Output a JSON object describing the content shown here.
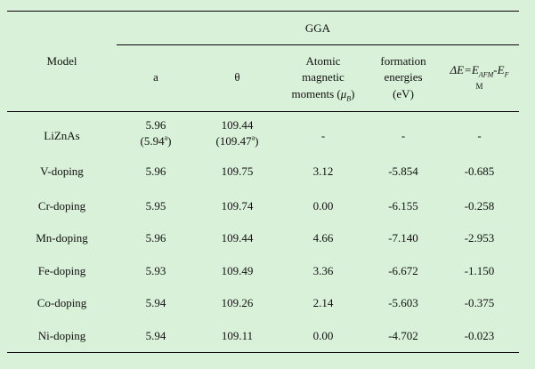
{
  "table": {
    "group_header": "GGA",
    "model_header": "Model",
    "columns": {
      "a": "a",
      "theta": "θ",
      "moments_line1": "Atomic",
      "moments_line2": "magnetic",
      "moments_line3_prefix": "moments (",
      "moments_mu": "μ",
      "moments_mu_sub": "B",
      "moments_suffix": ")",
      "formation_line1": "formation",
      "formation_line2": "energies",
      "formation_line3": "(eV)",
      "delta_prefix": "ΔE=E",
      "delta_sub1": "AFM",
      "delta_mid": "-E",
      "delta_sub2": "F",
      "delta_line2": "M"
    },
    "rows": [
      {
        "model": "LiZnAs",
        "a": "5.96",
        "a_ref": "(5.94",
        "a_ref_sup": "a",
        "a_ref_close": ")",
        "theta": "109.44",
        "theta_ref": "(109.47",
        "theta_ref_sup": "a",
        "theta_ref_close": ")",
        "moment": "-",
        "formation": "-",
        "delta": "-"
      },
      {
        "model": "V-doping",
        "a": "5.96",
        "theta": "109.75",
        "moment": "3.12",
        "formation": "-5.854",
        "delta": "-0.685"
      },
      {
        "model": "Cr-doping",
        "a": "5.95",
        "theta": "109.74",
        "moment": "0.00",
        "formation": "-6.155",
        "delta": "-0.258"
      },
      {
        "model": "Mn-doping",
        "a": "5.96",
        "theta": "109.44",
        "moment": "4.66",
        "formation": "-7.140",
        "delta": "-2.953"
      },
      {
        "model": "Fe-doping",
        "a": "5.93",
        "theta": "109.49",
        "moment": "3.36",
        "formation": "-6.672",
        "delta": "-1.150"
      },
      {
        "model": "Co-doping",
        "a": "5.94",
        "theta": "109.26",
        "moment": "2.14",
        "formation": "-5.603",
        "delta": "-0.375"
      },
      {
        "model": "Ni-doping",
        "a": "5.94",
        "theta": "109.11",
        "moment": "0.00",
        "formation": "-4.702",
        "delta": "-0.023"
      }
    ]
  }
}
